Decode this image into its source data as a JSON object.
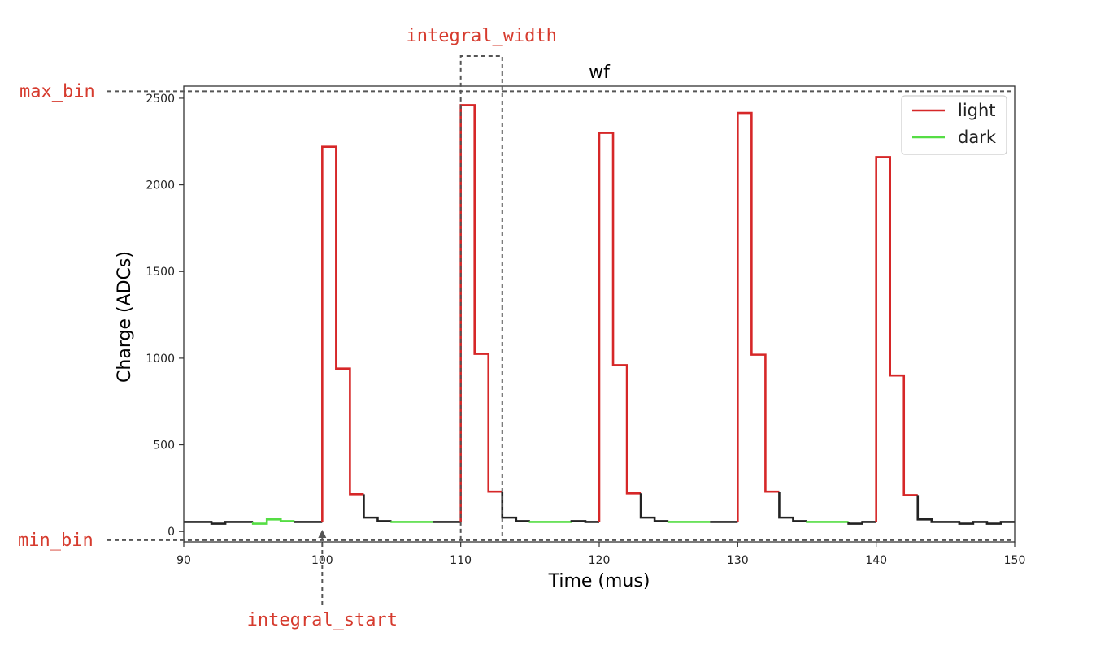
{
  "chart_data": {
    "type": "line",
    "title": "wf",
    "xlabel": "Time (mus)",
    "ylabel": "Charge (ADCs)",
    "xlim": [
      90,
      150
    ],
    "ylim": [
      -60,
      2570
    ],
    "xticks": [
      90,
      100,
      110,
      120,
      130,
      140,
      150
    ],
    "yticks": [
      0,
      500,
      1000,
      1500,
      2000,
      2500
    ],
    "grid": false,
    "legend_position": "top-right",
    "legend": [
      {
        "label": "light",
        "color": "#d62728"
      },
      {
        "label": "dark",
        "color": "#55dd44"
      }
    ],
    "step_edges_x": [
      90,
      91,
      92,
      93,
      94,
      95,
      96,
      97,
      98,
      99,
      100,
      101,
      102,
      103,
      104,
      105,
      106,
      107,
      108,
      109,
      110,
      111,
      112,
      113,
      114,
      115,
      116,
      117,
      118,
      119,
      120,
      121,
      122,
      123,
      124,
      125,
      126,
      127,
      128,
      129,
      130,
      131,
      132,
      133,
      134,
      135,
      136,
      137,
      138,
      139,
      140,
      141,
      142,
      143,
      144,
      145,
      146,
      147,
      148,
      149,
      150
    ],
    "values": [
      55,
      55,
      45,
      55,
      55,
      45,
      70,
      60,
      55,
      55,
      2220,
      940,
      215,
      80,
      60,
      55,
      55,
      55,
      55,
      55,
      2460,
      1025,
      230,
      80,
      60,
      55,
      55,
      55,
      60,
      55,
      2300,
      960,
      220,
      80,
      60,
      55,
      55,
      55,
      55,
      55,
      2415,
      1020,
      230,
      80,
      60,
      55,
      55,
      55,
      45,
      55,
      2160,
      900,
      210,
      70,
      55,
      55,
      45,
      55,
      45,
      55
    ],
    "segments": [
      {
        "series": "baseline",
        "range": [
          90,
          95
        ]
      },
      {
        "series": "dark",
        "range": [
          95,
          98
        ]
      },
      {
        "series": "baseline",
        "range": [
          98,
          100
        ]
      },
      {
        "series": "light",
        "range": [
          100,
          103
        ]
      },
      {
        "series": "baseline",
        "range": [
          103,
          105
        ]
      },
      {
        "series": "dark",
        "range": [
          105,
          108
        ]
      },
      {
        "series": "baseline",
        "range": [
          108,
          110
        ]
      },
      {
        "series": "light",
        "range": [
          110,
          113
        ]
      },
      {
        "series": "baseline",
        "range": [
          113,
          115
        ]
      },
      {
        "series": "dark",
        "range": [
          115,
          118
        ]
      },
      {
        "series": "baseline",
        "range": [
          118,
          120
        ]
      },
      {
        "series": "light",
        "range": [
          120,
          123
        ]
      },
      {
        "series": "baseline",
        "range": [
          123,
          125
        ]
      },
      {
        "series": "dark",
        "range": [
          125,
          128
        ]
      },
      {
        "series": "baseline",
        "range": [
          128,
          130
        ]
      },
      {
        "series": "light",
        "range": [
          130,
          133
        ]
      },
      {
        "series": "baseline",
        "range": [
          133,
          135
        ]
      },
      {
        "series": "dark",
        "range": [
          135,
          138
        ]
      },
      {
        "series": "baseline",
        "range": [
          138,
          140
        ]
      },
      {
        "series": "light",
        "range": [
          140,
          143
        ]
      },
      {
        "series": "baseline",
        "range": [
          143,
          150
        ]
      }
    ],
    "series_colors": {
      "light": "#d62728",
      "dark": "#55dd44",
      "baseline": "#222222"
    },
    "annotations": {
      "max_bin": {
        "label": "max_bin",
        "y": 2540
      },
      "min_bin": {
        "label": "min_bin",
        "y": -50
      },
      "integral_start": {
        "label": "integral_start",
        "x": 100
      },
      "integral_width": {
        "label": "integral_width",
        "x": [
          110,
          113
        ]
      }
    }
  }
}
